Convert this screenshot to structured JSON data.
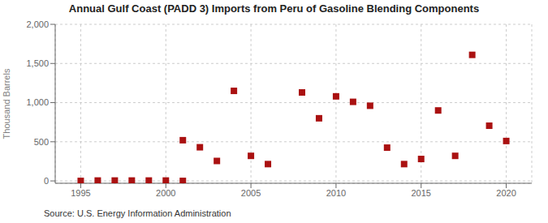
{
  "chart_data": {
    "type": "scatter",
    "title": "Annual Gulf Coast (PADD 3) Imports from Peru of Gasoline Blending Components",
    "ylabel": "Thousand Barrels",
    "annotations": [
      "Source: U.S. Energy Information Administration"
    ],
    "x": [
      1995,
      1996,
      1997,
      1998,
      1999,
      2000,
      2001,
      2001,
      2002,
      2003,
      2004,
      2005,
      2006,
      2008,
      2009,
      2010,
      2011,
      2012,
      2013,
      2014,
      2015,
      2016,
      2017,
      2018,
      2019,
      2020
    ],
    "values": [
      0,
      5,
      5,
      5,
      5,
      5,
      0,
      520,
      430,
      255,
      1150,
      320,
      215,
      1130,
      800,
      1080,
      1010,
      960,
      425,
      215,
      280,
      900,
      320,
      1610,
      705,
      510
    ],
    "color": "#aa1111",
    "marker": "square",
    "xlim": [
      1993.5,
      2021.5
    ],
    "xticks": [
      1995,
      2000,
      2005,
      2010,
      2015,
      2020
    ],
    "ylim": [
      -30,
      2000
    ],
    "yticks": [
      0,
      500,
      {
        "value": 1000,
        "label": "1,000"
      },
      {
        "value": 1500,
        "label": "1,500"
      },
      {
        "value": 2000,
        "label": "2,000"
      }
    ],
    "grid": true
  }
}
